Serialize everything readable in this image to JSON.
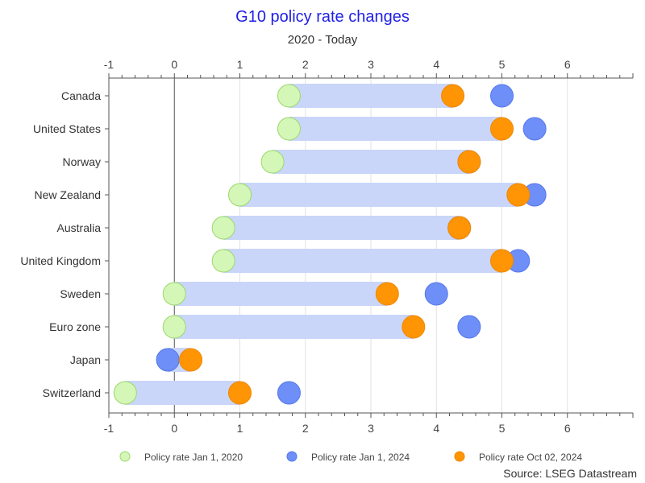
{
  "chart_data": {
    "type": "dumbbell",
    "title": "G10 policy rate changes",
    "subtitle": "2020 - Today",
    "source": "Source: LSEG Datastream",
    "xlim": [
      -1,
      7
    ],
    "xticks": [
      -1,
      0,
      1,
      2,
      3,
      4,
      5,
      6
    ],
    "grid": true,
    "legend_position": "bottom",
    "categories": [
      "Canada",
      "United States",
      "Norway",
      "New Zealand",
      "Australia",
      "United Kingdom",
      "Sweden",
      "Euro zone",
      "Japan",
      "Switzerland"
    ],
    "series": [
      {
        "name": "Policy rate Jan 1, 2020",
        "color": "#d4f7b8",
        "stroke": "#9cd86a",
        "values": [
          1.75,
          1.75,
          1.5,
          1.0,
          0.75,
          0.75,
          0.0,
          0.0,
          -0.1,
          -0.75
        ]
      },
      {
        "name": "Policy rate Jan 1, 2024",
        "color": "#6e8ff7",
        "stroke": "#5577ee",
        "values": [
          5.0,
          5.5,
          4.5,
          5.5,
          4.35,
          5.25,
          4.0,
          4.5,
          -0.1,
          1.75
        ]
      },
      {
        "name": "Policy rate Oct 02, 2024",
        "color": "#ff9405",
        "stroke": "#f08800",
        "values": [
          4.25,
          5.0,
          4.5,
          5.25,
          4.35,
          5.0,
          3.25,
          3.65,
          0.25,
          1.0
        ]
      }
    ],
    "bar_color": "#c9d6fa"
  }
}
